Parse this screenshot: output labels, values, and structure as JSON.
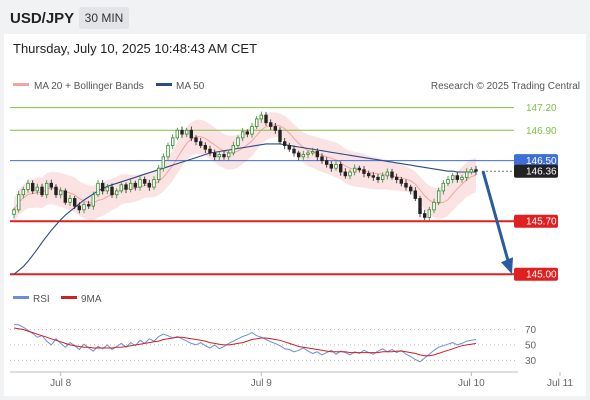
{
  "header": {
    "symbol": "USD/JPY",
    "timeframe": "30 MIN"
  },
  "datetime": "Thursday, July 10, 2025 10:48:43 AM CET",
  "legend": {
    "bollinger": "MA 20 + Bollinger Bands",
    "ma50": "MA 50"
  },
  "copyright": "Research © 2025 Trading Central",
  "rsi_legend": {
    "rsi": "RSI",
    "ma": "9MA"
  },
  "colors": {
    "bollinger": "#f4a3a3",
    "ma50": "#2c4a86",
    "resistance_green": "#7cc242",
    "pivot_blue": "#3d6fd6",
    "support_red": "#e02020",
    "arrow": "#2a5aa0",
    "candle_up": "#2e8b2e",
    "candle_down": "#222222",
    "current_price": "#222222",
    "rsi": "#6a8fd8",
    "rsi_ma": "#d02020"
  },
  "chart_data": [
    {
      "type": "candlestick",
      "title": "USD/JPY 30 MIN",
      "ylim": [
        144.95,
        147.3
      ],
      "x_ticks": [
        {
          "label": "Jul 8",
          "index": 10
        },
        {
          "label": "Jul 9",
          "index": 53
        },
        {
          "label": "Jul 10",
          "index": 98
        },
        {
          "label": "Jul 11",
          "index": 117
        }
      ],
      "levels": [
        {
          "value": 147.2,
          "label": "147.20",
          "kind": "resistance"
        },
        {
          "value": 146.9,
          "label": "146.90",
          "kind": "resistance"
        },
        {
          "value": 146.5,
          "label": "146.50",
          "kind": "pivot"
        },
        {
          "value": 146.36,
          "label": "146.36",
          "kind": "current"
        },
        {
          "value": 145.7,
          "label": "145.70",
          "kind": "support"
        },
        {
          "value": 145.0,
          "label": "145.00",
          "kind": "support"
        }
      ],
      "forecast_arrow": {
        "from": 146.36,
        "to": 145.0
      },
      "close": [
        145.85,
        146.05,
        146.12,
        146.2,
        146.1,
        146.15,
        146.05,
        146.2,
        146.15,
        146.05,
        146.1,
        145.95,
        146.0,
        145.9,
        145.85,
        145.92,
        145.9,
        146.05,
        146.2,
        146.1,
        146.15,
        146.05,
        146.1,
        146.18,
        146.12,
        146.2,
        146.15,
        146.25,
        146.2,
        146.15,
        146.25,
        146.4,
        146.55,
        146.7,
        146.8,
        146.9,
        146.85,
        146.9,
        146.8,
        146.75,
        146.7,
        146.65,
        146.6,
        146.55,
        146.58,
        146.55,
        146.6,
        146.7,
        146.8,
        146.88,
        146.85,
        146.95,
        147.05,
        147.1,
        147.0,
        146.95,
        146.9,
        146.75,
        146.7,
        146.65,
        146.6,
        146.55,
        146.58,
        146.6,
        146.62,
        146.55,
        146.5,
        146.45,
        146.4,
        146.45,
        146.35,
        146.3,
        146.35,
        146.4,
        146.38,
        146.33,
        146.3,
        146.28,
        146.25,
        146.3,
        146.35,
        146.28,
        146.25,
        146.2,
        146.15,
        146.1,
        146.0,
        145.8,
        145.75,
        145.85,
        145.95,
        146.1,
        146.2,
        146.25,
        146.3,
        146.25,
        146.28,
        146.35,
        146.38,
        146.36
      ],
      "ma50": [
        145.0,
        145.05,
        145.1,
        145.17,
        145.25,
        145.33,
        145.42,
        145.5,
        145.58,
        145.65,
        145.72,
        145.78,
        145.83,
        145.88,
        145.93,
        145.98,
        146.02,
        146.06,
        146.1,
        146.13,
        146.16,
        146.18,
        146.2,
        146.22,
        146.24,
        146.26,
        146.28,
        146.3,
        146.32,
        146.34,
        146.36,
        146.38,
        146.4,
        146.42,
        146.44,
        146.46,
        146.48,
        146.5,
        146.52,
        146.54,
        146.56,
        146.58,
        146.6,
        146.61,
        146.62,
        146.63,
        146.64,
        146.65,
        146.66,
        146.67,
        146.68,
        146.69,
        146.7,
        146.71,
        146.72,
        146.72,
        146.72,
        146.72,
        146.71,
        146.7,
        146.69,
        146.68,
        146.67,
        146.66,
        146.65,
        146.64,
        146.63,
        146.62,
        146.61,
        146.6,
        146.59,
        146.58,
        146.57,
        146.56,
        146.55,
        146.54,
        146.53,
        146.52,
        146.51,
        146.5,
        146.49,
        146.48,
        146.47,
        146.46,
        146.45,
        146.44,
        146.43,
        146.42,
        146.41,
        146.4,
        146.39,
        146.38,
        146.37,
        146.36,
        146.36,
        146.35,
        146.35,
        146.35,
        146.35,
        146.35
      ]
    },
    {
      "type": "line",
      "title": "RSI",
      "ylim": [
        20,
        85
      ],
      "y_ticks": [
        70,
        50,
        30
      ],
      "rsi": [
        77,
        76,
        73,
        69,
        65,
        60,
        62,
        55,
        50,
        58,
        52,
        47,
        53,
        49,
        44,
        51,
        46,
        42,
        48,
        45,
        50,
        44,
        48,
        52,
        47,
        53,
        49,
        56,
        52,
        58,
        55,
        61,
        64,
        62,
        59,
        61,
        58,
        55,
        52,
        50,
        53,
        49,
        46,
        50,
        45,
        48,
        52,
        55,
        58,
        61,
        63,
        66,
        62,
        60,
        57,
        54,
        52,
        49,
        45,
        44,
        41,
        43,
        46,
        42,
        39,
        41,
        37,
        40,
        43,
        38,
        42,
        40,
        37,
        41,
        39,
        43,
        40,
        38,
        42,
        45,
        41,
        44,
        40,
        43,
        38,
        35,
        31,
        28,
        33,
        38,
        43,
        47,
        49,
        51,
        53,
        50,
        52,
        55,
        56,
        57
      ],
      "rsi_ma": [
        72,
        71,
        70,
        68,
        66,
        64,
        62,
        60,
        58,
        56,
        54,
        52,
        50,
        49,
        48,
        47,
        47,
        46,
        46,
        46,
        46,
        46,
        47,
        47,
        48,
        49,
        50,
        51,
        52,
        53,
        54,
        55,
        57,
        58,
        59,
        60,
        60,
        59,
        58,
        57,
        56,
        55,
        53,
        52,
        51,
        50,
        50,
        51,
        52,
        53,
        55,
        57,
        58,
        59,
        59,
        58,
        57,
        56,
        54,
        52,
        50,
        48,
        47,
        46,
        45,
        44,
        43,
        42,
        41,
        41,
        41,
        41,
        40,
        40,
        40,
        40,
        40,
        40,
        40,
        41,
        41,
        41,
        42,
        42,
        41,
        40,
        39,
        37,
        36,
        36,
        37,
        39,
        41,
        43,
        45,
        47,
        49,
        50,
        51,
        52
      ]
    }
  ]
}
